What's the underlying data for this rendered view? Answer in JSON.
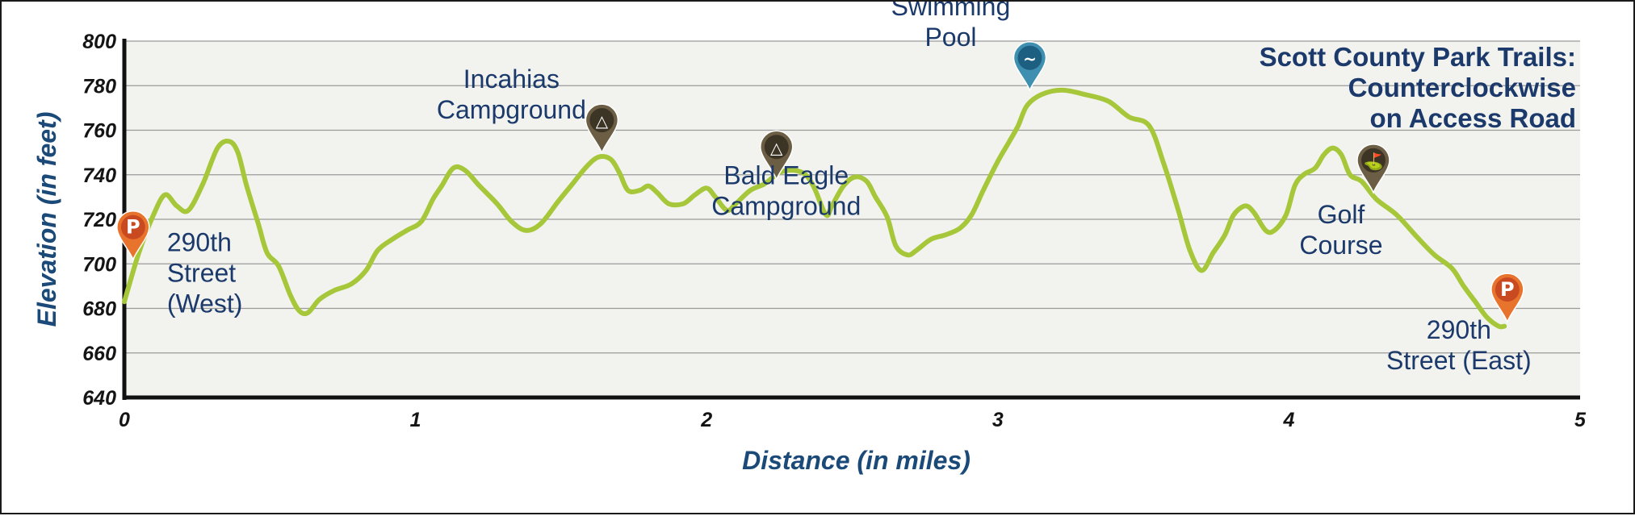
{
  "chart_data": {
    "type": "line",
    "title": [
      "Scott County Park Trails:",
      "Counterclockwise",
      "on Access Road"
    ],
    "xlabel": "Distance (in miles)",
    "ylabel": "Elevation (in feet)",
    "xlim": [
      0,
      5
    ],
    "ylim": [
      640,
      800
    ],
    "x_ticks": [
      0,
      1,
      2,
      3,
      4,
      5
    ],
    "y_ticks": [
      640,
      660,
      680,
      700,
      720,
      740,
      760,
      780,
      800
    ],
    "grid": "horizontal",
    "line_color": "#a7c73a",
    "points": [
      [
        0.0,
        683
      ],
      [
        0.05,
        705
      ],
      [
        0.1,
        722
      ],
      [
        0.14,
        731
      ],
      [
        0.18,
        726
      ],
      [
        0.22,
        724
      ],
      [
        0.27,
        736
      ],
      [
        0.32,
        752
      ],
      [
        0.36,
        755
      ],
      [
        0.39,
        750
      ],
      [
        0.42,
        735
      ],
      [
        0.46,
        718
      ],
      [
        0.49,
        705
      ],
      [
        0.53,
        699
      ],
      [
        0.57,
        686
      ],
      [
        0.6,
        679
      ],
      [
        0.63,
        678
      ],
      [
        0.67,
        684
      ],
      [
        0.72,
        688
      ],
      [
        0.78,
        691
      ],
      [
        0.83,
        697
      ],
      [
        0.87,
        706
      ],
      [
        0.92,
        711
      ],
      [
        0.97,
        715
      ],
      [
        1.02,
        719
      ],
      [
        1.06,
        729
      ],
      [
        1.09,
        735
      ],
      [
        1.13,
        743
      ],
      [
        1.17,
        742
      ],
      [
        1.22,
        735
      ],
      [
        1.28,
        727
      ],
      [
        1.33,
        719
      ],
      [
        1.38,
        715
      ],
      [
        1.43,
        718
      ],
      [
        1.49,
        728
      ],
      [
        1.54,
        736
      ],
      [
        1.59,
        744
      ],
      [
        1.63,
        748
      ],
      [
        1.67,
        747
      ],
      [
        1.7,
        741
      ],
      [
        1.73,
        733
      ],
      [
        1.77,
        733
      ],
      [
        1.8,
        735
      ],
      [
        1.83,
        732
      ],
      [
        1.87,
        727
      ],
      [
        1.92,
        727
      ],
      [
        1.96,
        731
      ],
      [
        2.0,
        734
      ],
      [
        2.03,
        730
      ],
      [
        2.07,
        724
      ],
      [
        2.1,
        727
      ],
      [
        2.15,
        733
      ],
      [
        2.2,
        736
      ],
      [
        2.25,
        741
      ],
      [
        2.3,
        742
      ],
      [
        2.34,
        740
      ],
      [
        2.37,
        734
      ],
      [
        2.41,
        722
      ],
      [
        2.43,
        726
      ],
      [
        2.47,
        735
      ],
      [
        2.51,
        739
      ],
      [
        2.55,
        737
      ],
      [
        2.58,
        730
      ],
      [
        2.62,
        721
      ],
      [
        2.65,
        708
      ],
      [
        2.69,
        704
      ],
      [
        2.72,
        706
      ],
      [
        2.77,
        711
      ],
      [
        2.82,
        713
      ],
      [
        2.87,
        716
      ],
      [
        2.91,
        722
      ],
      [
        2.95,
        733
      ],
      [
        3.0,
        746
      ],
      [
        3.04,
        755
      ],
      [
        3.07,
        762
      ],
      [
        3.1,
        771
      ],
      [
        3.15,
        776
      ],
      [
        3.22,
        778
      ],
      [
        3.3,
        776
      ],
      [
        3.38,
        773
      ],
      [
        3.45,
        766
      ],
      [
        3.52,
        762
      ],
      [
        3.57,
        745
      ],
      [
        3.62,
        724
      ],
      [
        3.66,
        706
      ],
      [
        3.7,
        697
      ],
      [
        3.74,
        705
      ],
      [
        3.78,
        713
      ],
      [
        3.81,
        722
      ],
      [
        3.85,
        726
      ],
      [
        3.88,
        723
      ],
      [
        3.92,
        715
      ],
      [
        3.95,
        715
      ],
      [
        3.99,
        722
      ],
      [
        4.02,
        735
      ],
      [
        4.05,
        740
      ],
      [
        4.09,
        743
      ],
      [
        4.12,
        749
      ],
      [
        4.15,
        752
      ],
      [
        4.18,
        749
      ],
      [
        4.21,
        740
      ],
      [
        4.25,
        737
      ],
      [
        4.3,
        729
      ],
      [
        4.37,
        722
      ],
      [
        4.44,
        712
      ],
      [
        4.5,
        704
      ],
      [
        4.56,
        698
      ],
      [
        4.6,
        690
      ],
      [
        4.64,
        683
      ],
      [
        4.68,
        676
      ],
      [
        4.72,
        672
      ],
      [
        4.74,
        672
      ]
    ],
    "annotations": [
      {
        "label": [
          "290th",
          "Street",
          "(West)"
        ],
        "marker": "parking",
        "x": 0.03,
        "y": 702
      },
      {
        "label": [
          "Incahias",
          "Campground"
        ],
        "marker": "campground",
        "x": 1.64,
        "y": 750
      },
      {
        "label": [
          "Bald Eagle",
          "Campground"
        ],
        "marker": "campground",
        "x": 2.24,
        "y": 738
      },
      {
        "label": [
          "Swimming",
          "Pool"
        ],
        "marker": "swimming",
        "x": 3.11,
        "y": 778
      },
      {
        "label": [
          "Golf",
          "Course"
        ],
        "marker": "golf",
        "x": 4.29,
        "y": 732
      },
      {
        "label": [
          "290th",
          "Street (East)"
        ],
        "marker": "parking",
        "x": 4.75,
        "y": 674
      }
    ],
    "marker_styles": {
      "parking": {
        "color": "#e8732c",
        "inner": "#c94a20",
        "glyph": "P"
      },
      "campground": {
        "color": "#6b5e44",
        "inner": "#3c3424",
        "glyph": "△"
      },
      "swimming": {
        "color": "#3e8fb0",
        "inner": "#1d5f80",
        "glyph": "~"
      },
      "golf": {
        "color": "#6b5e44",
        "inner": "#3c3424",
        "glyph": "⛳"
      }
    }
  }
}
